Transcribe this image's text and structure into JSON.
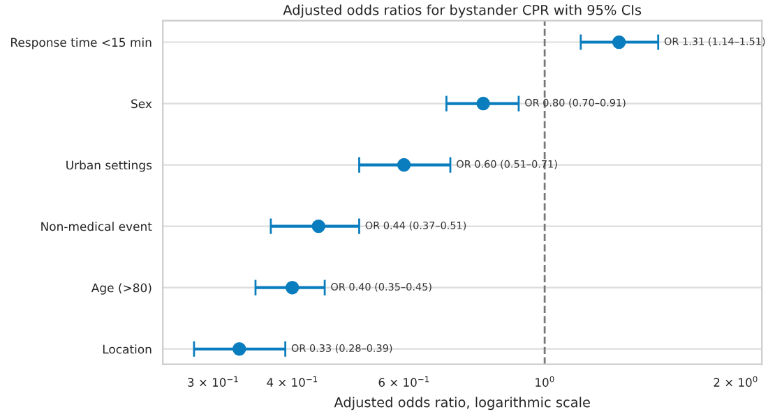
{
  "chart_data": {
    "type": "scatter",
    "orientation": "horizontal",
    "title": "Adjusted odds ratios for bystander CPR with 95% CIs",
    "xlabel": "Adjusted odds ratio, logarithmic scale",
    "categories": [
      "Response time <15 min",
      "Sex",
      "Urban settings",
      "Non-medical event",
      "Age (>80)",
      "Location"
    ],
    "series": [
      {
        "color": "#0a7dbe",
        "values": [
          1.31,
          0.8,
          0.6,
          0.44,
          0.4,
          0.33
        ],
        "errors": [
          [
            1.14,
            1.51
          ],
          [
            0.7,
            0.91
          ],
          [
            0.51,
            0.71
          ],
          [
            0.37,
            0.51
          ],
          [
            0.35,
            0.45
          ],
          [
            0.28,
            0.39
          ]
        ]
      }
    ],
    "annotations": [
      {
        "text": "OR 1.31 (1.14–1.51)",
        "x": 1.51,
        "y": "Response time <15 min"
      },
      {
        "text": "OR 0.80 (0.70–0.91)",
        "x": 0.91,
        "y": "Sex"
      },
      {
        "text": "OR 0.60 (0.51–0.71)",
        "x": 0.71,
        "y": "Urban settings"
      },
      {
        "text": "OR 0.44 (0.37–0.51)",
        "x": 0.51,
        "y": "Non-medical event"
      },
      {
        "text": "OR 0.40 (0.35–0.45)",
        "x": 0.45,
        "y": "Age (>80)"
      },
      {
        "text": "OR 0.33 (0.28–0.39)",
        "x": 0.39,
        "y": "Location"
      }
    ],
    "log": "x",
    "xlim": [
      0.25,
      2.2
    ],
    "xticks": [
      {
        "value": 0.3,
        "label": "3 × 10$^{−1}$"
      },
      {
        "value": 0.4,
        "label": "4 × 10$^{−1}$"
      },
      {
        "value": 0.6,
        "label": "6 × 10$^{−1}$"
      },
      {
        "value": 1,
        "label": "10$^{0}$"
      },
      {
        "value": 2,
        "label": "2 × 10$^{0}$"
      }
    ],
    "ref_lines": [
      {
        "axis": "x",
        "value": 1,
        "color": "#777777",
        "line_style": "dashed"
      }
    ],
    "grid": "y",
    "marker": "circle"
  }
}
